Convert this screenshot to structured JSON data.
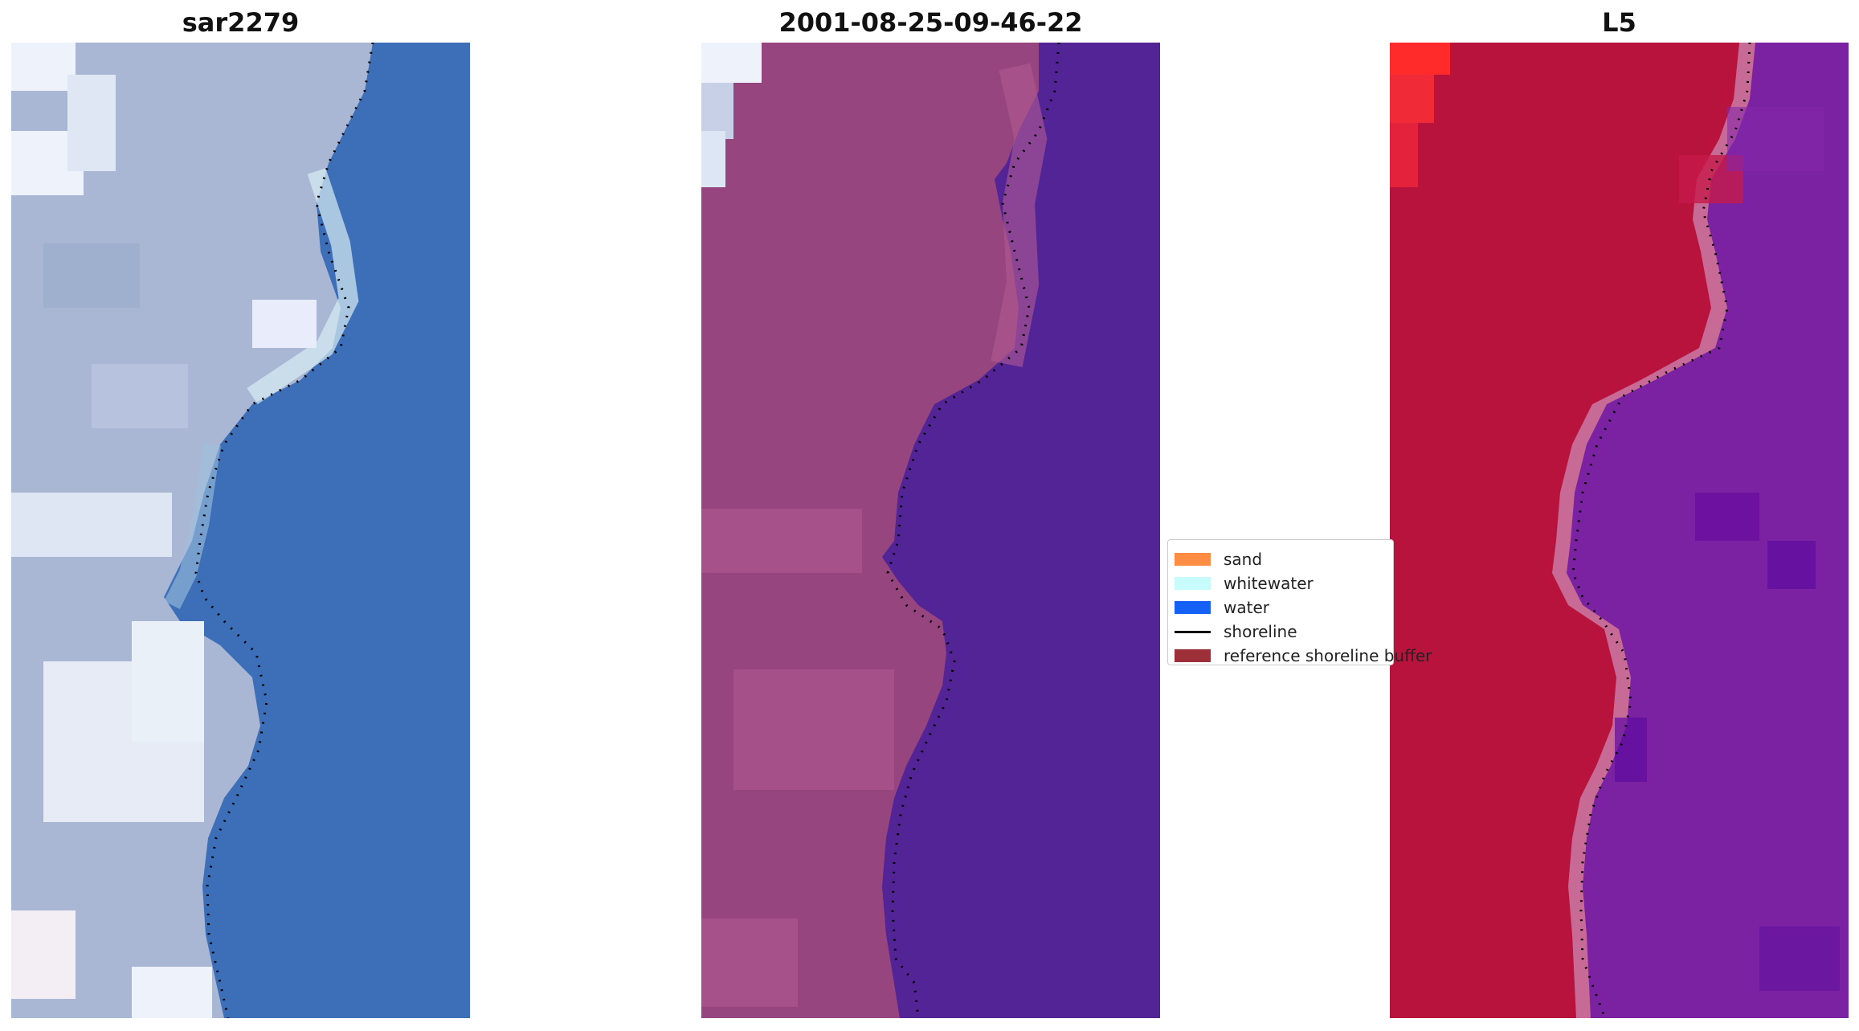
{
  "panels": [
    {
      "title": "sar2279",
      "kind": "rgb"
    },
    {
      "title": "2001-08-25-09-46-22",
      "kind": "classified"
    },
    {
      "title": "L5",
      "kind": "index"
    }
  ],
  "legend": {
    "placement": "center",
    "items": [
      {
        "label": "sand",
        "color": "#ff8c42",
        "type": "patch"
      },
      {
        "label": "whitewater",
        "color": "#c8fcfc",
        "type": "patch"
      },
      {
        "label": "water",
        "color": "#1560f5",
        "type": "patch"
      },
      {
        "label": "shoreline",
        "color": "#000000",
        "type": "line"
      },
      {
        "label": "reference shoreline buffer",
        "color": "#9c2f38",
        "type": "patch"
      }
    ]
  },
  "colors": {
    "rgb_water": "#3d6fb8",
    "rgb_land": "#a9b7d4",
    "rgb_white": "#eef2fb",
    "class_land": "#96457e",
    "class_land_light": "#b35a92",
    "class_water": "#532496",
    "index_land": "#b8133c",
    "index_edge": "#c86a96",
    "index_water": "#7a22a2",
    "index_hot": "#ff2a2a"
  }
}
